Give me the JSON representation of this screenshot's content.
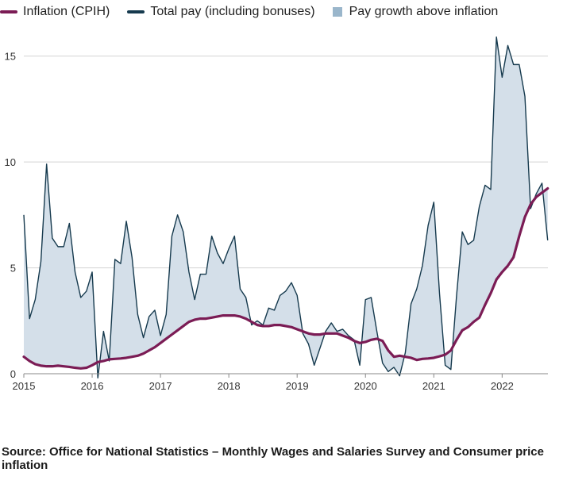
{
  "chart_data": {
    "type": "line",
    "title": "",
    "xlabel": "",
    "ylabel": "",
    "x_start": 2015,
    "x_step_months": 1,
    "xlim": [
      2015,
      2022.67
    ],
    "ylim": [
      0,
      16
    ],
    "x_ticks": [
      2015,
      2016,
      2017,
      2018,
      2019,
      2020,
      2021,
      2022
    ],
    "x_tick_labels": [
      "2015",
      "2016",
      "2017",
      "2018",
      "2019",
      "2020",
      "2021",
      "2022"
    ],
    "y_ticks": [
      0,
      5,
      10,
      15
    ],
    "y_tick_labels": [
      "0",
      "5",
      "10",
      "15"
    ],
    "grid": "horizontal",
    "legend_position": "top-left",
    "series": [
      {
        "name": "Inflation (CPIH)",
        "color": "#7b1c55",
        "values": [
          0.8,
          0.6,
          0.45,
          0.38,
          0.35,
          0.35,
          0.38,
          0.35,
          0.32,
          0.28,
          0.25,
          0.28,
          0.4,
          0.55,
          0.6,
          0.68,
          0.7,
          0.72,
          0.75,
          0.8,
          0.85,
          0.95,
          1.1,
          1.25,
          1.45,
          1.65,
          1.85,
          2.05,
          2.25,
          2.45,
          2.55,
          2.6,
          2.6,
          2.65,
          2.7,
          2.75,
          2.75,
          2.75,
          2.7,
          2.6,
          2.45,
          2.3,
          2.25,
          2.25,
          2.3,
          2.3,
          2.25,
          2.2,
          2.1,
          2.0,
          1.9,
          1.85,
          1.85,
          1.9,
          1.9,
          1.9,
          1.8,
          1.7,
          1.55,
          1.45,
          1.5,
          1.6,
          1.65,
          1.55,
          1.1,
          0.8,
          0.85,
          0.8,
          0.75,
          0.65,
          0.7,
          0.72,
          0.75,
          0.82,
          0.9,
          1.1,
          1.6,
          2.05,
          2.2,
          2.45,
          2.65,
          3.25,
          3.8,
          4.45,
          4.8,
          5.1,
          5.5,
          6.5,
          7.4,
          8.0,
          8.35,
          8.55,
          8.75
        ]
      },
      {
        "name": "Total pay (including bonuses)",
        "color": "#163a4e",
        "values": [
          7.5,
          2.6,
          3.5,
          5.3,
          9.9,
          6.4,
          6.0,
          6.0,
          7.1,
          4.8,
          3.6,
          3.9,
          4.8,
          -0.2,
          2.0,
          0.6,
          5.4,
          5.2,
          7.2,
          5.5,
          2.8,
          1.7,
          2.7,
          3.0,
          1.8,
          2.8,
          6.5,
          7.5,
          6.7,
          4.8,
          3.5,
          4.7,
          4.7,
          6.5,
          5.7,
          5.2,
          5.9,
          6.5,
          4.0,
          3.6,
          2.3,
          2.5,
          2.3,
          3.1,
          3.0,
          3.7,
          3.9,
          4.3,
          3.7,
          1.9,
          1.4,
          0.4,
          1.2,
          2.0,
          2.4,
          2.0,
          2.1,
          1.8,
          1.6,
          0.4,
          3.5,
          3.6,
          2.0,
          0.5,
          0.1,
          0.3,
          -0.1,
          1.0,
          3.3,
          4.0,
          5.1,
          7.0,
          8.1,
          3.8,
          0.4,
          0.2,
          3.7,
          6.7,
          6.1,
          6.3,
          7.9,
          8.9,
          8.7,
          15.9,
          14.0,
          15.5,
          14.6,
          14.6,
          13.1,
          7.8,
          8.5,
          9.0,
          6.3
        ]
      }
    ],
    "fill_between": {
      "name": "Pay growth above inflation",
      "color": "#d4dfe9",
      "between": [
        "Total pay (including bonuses)",
        "Inflation (CPIH)"
      ]
    }
  },
  "legend": {
    "items": [
      {
        "label": "Inflation (CPIH)",
        "color": "#7b1c55",
        "kind": "line"
      },
      {
        "label": "Total pay (including bonuses)",
        "color": "#163a4e",
        "kind": "line"
      },
      {
        "label": "Pay growth above inflation",
        "color": "#9ab6cb",
        "kind": "box"
      }
    ]
  },
  "source": "Source: Office for National Statistics – Monthly Wages and Salaries Survey and Consumer price inflation"
}
